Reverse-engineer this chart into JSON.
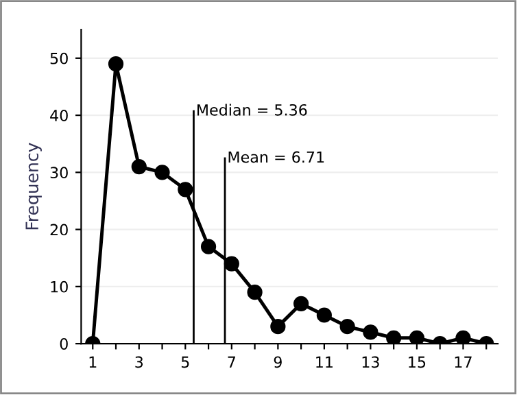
{
  "chart_data": {
    "type": "line",
    "ylabel": "Frequency",
    "x": [
      1,
      2,
      3,
      4,
      5,
      6,
      7,
      8,
      9,
      10,
      11,
      12,
      13,
      14,
      15,
      16,
      17,
      18
    ],
    "series": [
      {
        "color": "#000000",
        "values": [
          0,
          49,
          31,
          30,
          27,
          17,
          14,
          9,
          3,
          7,
          5,
          3,
          2,
          1,
          1,
          0,
          1,
          0
        ]
      }
    ],
    "xlim": [
      0.5,
      18.5
    ],
    "ylim": [
      0,
      55
    ],
    "xticks": [
      1,
      {
        "value": 2,
        "label": null
      },
      3,
      {
        "value": 4,
        "label": null
      },
      5,
      {
        "value": 6,
        "label": null
      },
      7,
      {
        "value": 8,
        "label": null
      },
      9,
      {
        "value": 10,
        "label": null
      },
      11,
      {
        "value": 12,
        "label": null
      },
      13,
      {
        "value": 14,
        "label": null
      },
      15,
      {
        "value": 16,
        "label": null
      },
      17,
      {
        "value": 18,
        "label": null
      }
    ],
    "yticks": [
      0,
      10,
      20,
      30,
      40,
      50
    ],
    "ref_lines": [
      {
        "axis": "x",
        "value": 5.36,
        "label": "Median = 5.36",
        "color": "#000000"
      },
      {
        "axis": "x",
        "value": 6.71,
        "label": "Mean = 6.71",
        "color": "#000000"
      }
    ],
    "grid": "y",
    "marker": "circle",
    "line_style": "solid",
    "legend": false
  }
}
